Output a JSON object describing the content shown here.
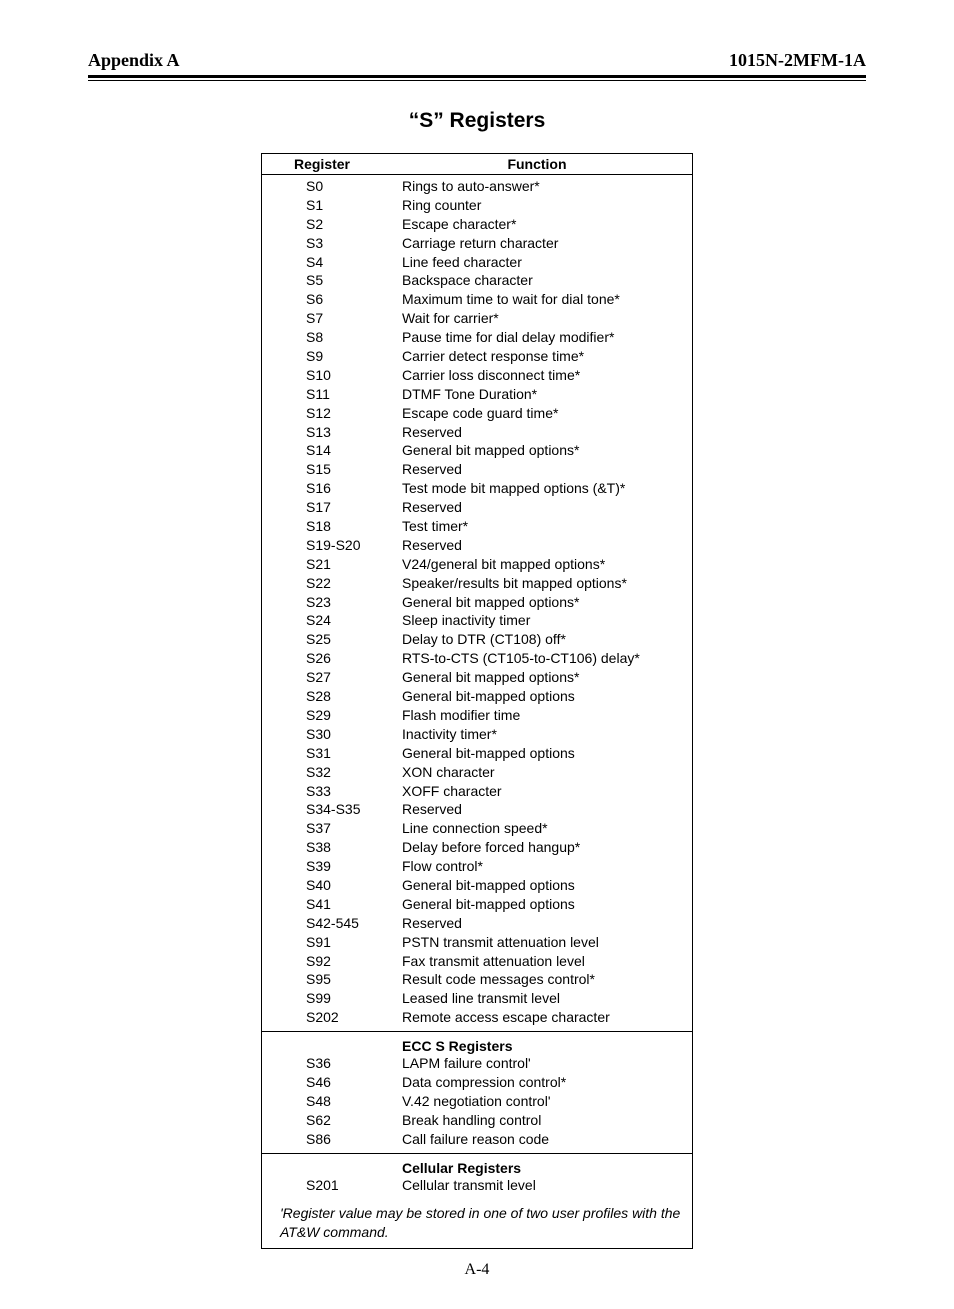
{
  "header": {
    "left": "Appendix A",
    "right": "1015N-2MFM-1A"
  },
  "title": "“S” Registers",
  "columns": {
    "register": "Register",
    "function": "Function"
  },
  "sections": [
    {
      "title": null,
      "rows": [
        {
          "reg": "S0",
          "func": "Rings to auto-answer*"
        },
        {
          "reg": "S1",
          "func": "Ring counter"
        },
        {
          "reg": "S2",
          "func": "Escape character*"
        },
        {
          "reg": "S3",
          "func": "Carriage return character"
        },
        {
          "reg": "S4",
          "func": "Line feed character"
        },
        {
          "reg": "S5",
          "func": "Backspace character"
        },
        {
          "reg": "S6",
          "func": "Maximum time to wait for dial tone*"
        },
        {
          "reg": "S7",
          "func": "Wait for carrier*"
        },
        {
          "reg": "S8",
          "func": "Pause time for dial delay modifier*"
        },
        {
          "reg": "S9",
          "func": "Carrier detect response time*"
        },
        {
          "reg": "S10",
          "func": "Carrier loss disconnect time*"
        },
        {
          "reg": "S11",
          "func": "DTMF Tone Duration*"
        },
        {
          "reg": "S12",
          "func": "Escape code guard time*"
        },
        {
          "reg": "S13",
          "func": "Reserved"
        },
        {
          "reg": "S14",
          "func": "General bit mapped options*"
        },
        {
          "reg": "S15",
          "func": "Reserved"
        },
        {
          "reg": "S16",
          "func": "Test mode bit mapped options (&T)*"
        },
        {
          "reg": "S17",
          "func": "Reserved"
        },
        {
          "reg": "S18",
          "func": "Test timer*"
        },
        {
          "reg": "S19-S20",
          "func": "Reserved"
        },
        {
          "reg": "S21",
          "func": "V24/general bit mapped options*"
        },
        {
          "reg": "S22",
          "func": "Speaker/results bit mapped options*"
        },
        {
          "reg": "S23",
          "func": "General bit mapped options*"
        },
        {
          "reg": "S24",
          "func": "Sleep inactivity timer"
        },
        {
          "reg": "S25",
          "func": "Delay to DTR (CT108) off*"
        },
        {
          "reg": "S26",
          "func": "RTS-to-CTS (CT105-to-CT106) delay*"
        },
        {
          "reg": "S27",
          "func": "General bit mapped options*"
        },
        {
          "reg": "S28",
          "func": "General bit-mapped options"
        },
        {
          "reg": "S29",
          "func": "Flash modifier time"
        },
        {
          "reg": "S30",
          "func": "Inactivity timer*"
        },
        {
          "reg": "S31",
          "func": "General bit-mapped options"
        },
        {
          "reg": "S32",
          "func": "XON character"
        },
        {
          "reg": "S33",
          "func": "XOFF character"
        },
        {
          "reg": "S34-S35",
          "func": "Reserved"
        },
        {
          "reg": "S37",
          "func": "Line connection speed*"
        },
        {
          "reg": "S38",
          "func": "Delay before forced hangup*"
        },
        {
          "reg": "S39",
          "func": "Flow control*"
        },
        {
          "reg": "S40",
          "func": "General bit-mapped options"
        },
        {
          "reg": "S41",
          "func": "General bit-mapped options"
        },
        {
          "reg": "S42-545",
          "func": "Reserved"
        },
        {
          "reg": "S91",
          "func": "PSTN transmit attenuation level"
        },
        {
          "reg": "S92",
          "func": "Fax transmit attenuation level"
        },
        {
          "reg": "S95",
          "func": "Result code messages control*"
        },
        {
          "reg": "S99",
          "func": "Leased line transmit level"
        },
        {
          "reg": "S202",
          "func": "Remote access escape character"
        }
      ]
    },
    {
      "title": "ECC S Registers",
      "rows": [
        {
          "reg": "S36",
          "func": "LAPM failure control'"
        },
        {
          "reg": "S46",
          "func": "Data compression control*"
        },
        {
          "reg": "S48",
          "func": "V.42 negotiation control'"
        },
        {
          "reg": "S62",
          "func": "Break handling control"
        },
        {
          "reg": "S86",
          "func": "Call failure reason code"
        }
      ]
    },
    {
      "title": "Cellular Registers",
      "rows": [
        {
          "reg": "S201",
          "func": "Cellular transmit level"
        }
      ]
    }
  ],
  "footnote": "'Register value may be stored in one of two user profiles with the AT&W command.",
  "page_number": "A-4"
}
